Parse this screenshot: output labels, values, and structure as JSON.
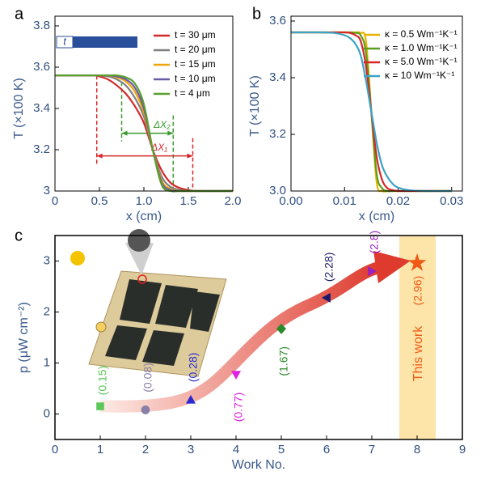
{
  "chart_data": [
    {
      "type": "line",
      "panel": "a",
      "xlabel": "x (cm)",
      "ylabel": "T (×100 K)",
      "inset_label": "t",
      "x": [
        0,
        0.4,
        0.5,
        0.6,
        0.7,
        0.8,
        0.9,
        1.0,
        1.1,
        1.2,
        1.3,
        1.4,
        1.5,
        1.6,
        2.0
      ],
      "series": [
        {
          "name": "t = 30 μm",
          "color": "#d62728",
          "values": [
            3.56,
            3.56,
            3.555,
            3.54,
            3.51,
            3.47,
            3.41,
            3.33,
            3.2,
            3.1,
            3.04,
            3.015,
            3.005,
            3.0,
            3.0
          ]
        },
        {
          "name": "t = 20 μm",
          "color": "#7f7f7f",
          "values": [
            3.56,
            3.56,
            3.56,
            3.555,
            3.54,
            3.51,
            3.45,
            3.36,
            3.2,
            3.07,
            3.02,
            3.005,
            3.0,
            3.0,
            3.0
          ]
        },
        {
          "name": "t = 15 μm",
          "color": "#f0a30a",
          "values": [
            3.56,
            3.56,
            3.56,
            3.56,
            3.55,
            3.53,
            3.48,
            3.38,
            3.2,
            3.05,
            3.01,
            3.0,
            3.0,
            3.0,
            3.0
          ]
        },
        {
          "name": "t = 10 μm",
          "color": "#6a5aa8",
          "values": [
            3.56,
            3.56,
            3.56,
            3.56,
            3.555,
            3.54,
            3.5,
            3.4,
            3.2,
            3.04,
            3.005,
            3.0,
            3.0,
            3.0,
            3.0
          ]
        },
        {
          "name": "t = 4 μm",
          "color": "#5aa02c",
          "values": [
            3.56,
            3.56,
            3.56,
            3.56,
            3.56,
            3.55,
            3.52,
            3.42,
            3.2,
            3.03,
            3.0,
            3.0,
            3.0,
            3.0,
            3.0
          ]
        }
      ],
      "intervals": [
        {
          "label": "ΔX₂",
          "from": 0.75,
          "to": 1.33,
          "y": 3.28,
          "color": "#3a9a2e"
        },
        {
          "label": "ΔX₁",
          "from": 0.47,
          "to": 1.55,
          "y": 3.17,
          "color": "#d62728"
        }
      ],
      "xlim": [
        0,
        2.0
      ],
      "xticks": [
        0,
        0.5,
        {
          "value": 1.0,
          "label": "1.0"
        },
        1.5,
        {
          "value": 2.0,
          "label": "2.0"
        }
      ],
      "ylim": [
        3,
        3.8
      ],
      "yticks": [
        3,
        3.2,
        3.4,
        3.6,
        3.8
      ]
    },
    {
      "type": "line",
      "panel": "b",
      "xlabel": "x (cm)",
      "ylabel": "T (×100 K)",
      "x": [
        0,
        0.005,
        0.008,
        0.01,
        0.011,
        0.012,
        0.013,
        0.014,
        0.015,
        0.016,
        0.017,
        0.018,
        0.019,
        0.02,
        0.022,
        0.025,
        0.03
      ],
      "series": [
        {
          "name": "κ = 0.5 Wm⁻¹K⁻¹",
          "color": "#e8b400",
          "values": [
            3.56,
            3.56,
            3.56,
            3.56,
            3.56,
            3.56,
            3.558,
            3.53,
            3.28,
            3.03,
            3.0,
            3.0,
            3.0,
            3.0,
            3.0,
            3.0,
            3.0
          ]
        },
        {
          "name": "κ = 1.0 Wm⁻¹K⁻¹",
          "color": "#5a9e1a",
          "values": [
            3.56,
            3.56,
            3.56,
            3.56,
            3.56,
            3.558,
            3.55,
            3.49,
            3.28,
            3.06,
            3.01,
            3.0,
            3.0,
            3.0,
            3.0,
            3.0,
            3.0
          ]
        },
        {
          "name": "κ = 5.0 Wm⁻¹K⁻¹",
          "color": "#d62728",
          "values": [
            3.56,
            3.56,
            3.56,
            3.56,
            3.558,
            3.55,
            3.53,
            3.44,
            3.28,
            3.12,
            3.04,
            3.01,
            3.003,
            3.0,
            3.0,
            3.0,
            3.0
          ]
        },
        {
          "name": "κ = 10 Wm⁻¹K⁻¹",
          "color": "#3ba3c3",
          "values": [
            3.56,
            3.56,
            3.558,
            3.55,
            3.54,
            3.52,
            3.48,
            3.39,
            3.28,
            3.17,
            3.09,
            3.05,
            3.025,
            3.012,
            3.003,
            3.0,
            3.0
          ]
        }
      ],
      "xlim": [
        0,
        0.032
      ],
      "xticks": [
        {
          "value": 0,
          "label": "0.00"
        },
        0.01,
        0.02,
        0.03
      ],
      "ylim": [
        3.0,
        3.6
      ],
      "yticks": [
        {
          "value": 3.0,
          "label": "3.0"
        },
        3.2,
        3.4,
        3.6
      ]
    },
    {
      "type": "scatter",
      "panel": "c",
      "xlabel": "Work No.",
      "ylabel": "p (μW cm⁻²)",
      "annotation": "This work",
      "x": [
        1,
        2,
        3,
        4,
        5,
        6,
        7,
        8
      ],
      "values": [
        0.15,
        0.08,
        0.28,
        0.77,
        1.67,
        2.28,
        2.8,
        2.96
      ],
      "value_labels": [
        "(0.15)",
        "(0.08)",
        "(0.28)",
        "(0.77)",
        "(1.67)",
        "(2.28)",
        "(2.8)",
        "(2.96)"
      ],
      "colors": [
        "#5cc85c",
        "#8a7fa8",
        "#2a2ad0",
        "#e020e0",
        "#2a8a2a",
        "#1a1a6a",
        "#9a20c0",
        "#f05a14"
      ],
      "markers": [
        "square",
        "circle",
        "triangle",
        "triangle-down",
        "diamond",
        "triangle-left",
        "triangle-right",
        "star"
      ],
      "xlim": [
        0,
        9
      ],
      "xticks": [
        0,
        1,
        2,
        3,
        4,
        5,
        6,
        7,
        8,
        9
      ],
      "ylim": [
        -0.5,
        3.5
      ],
      "yticks": [
        0,
        1,
        2,
        3
      ]
    }
  ]
}
